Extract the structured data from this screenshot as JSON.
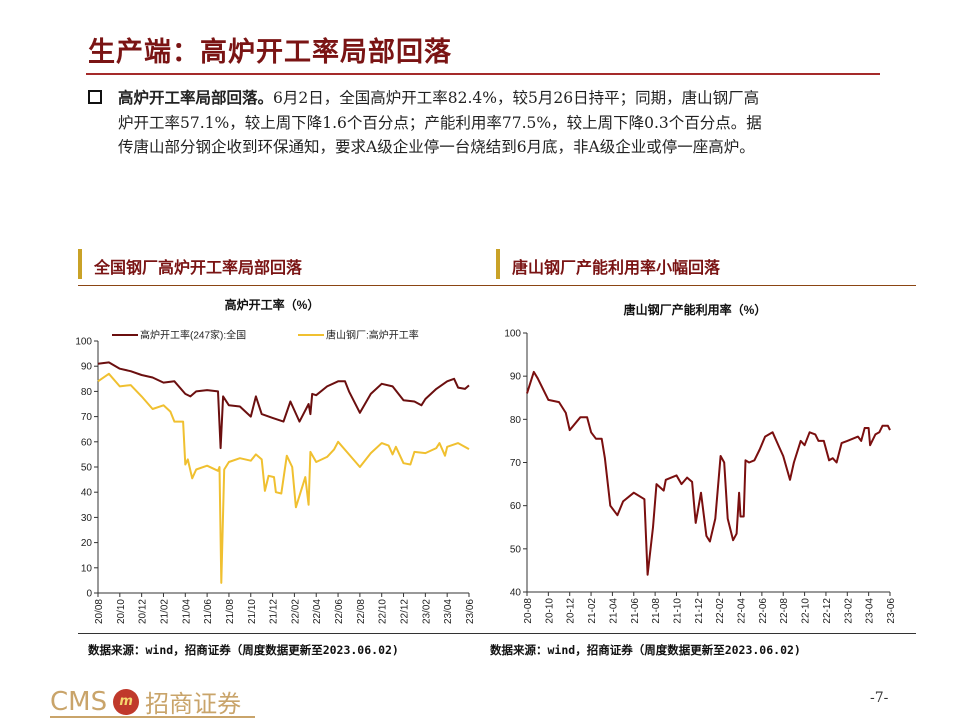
{
  "title": "生产端：高炉开工率局部回落",
  "summary": {
    "bold_lead": "高炉开工率局部回落。",
    "line1_rest": "6月2日，全国高炉开工率82.4%，较5月26日持平；同期，唐山钢厂高",
    "line2": "炉开工率57.1%，较上周下降1.6个百分点；产能利用率77.5%，较上周下降0.3个百分点。据",
    "line3": "传唐山部分钢企收到环保通知，要求A级企业停一台烧结到6月底，非A级企业或停一座高炉。"
  },
  "sections": {
    "left_title": "全国钢厂高炉开工率局部回落",
    "right_title": "唐山钢厂产能利用率小幅回落",
    "accent_color": "#c9a227"
  },
  "sources": {
    "left": "数据来源：wind，招商证券（周度数据更新至2023.06.02)",
    "right": "数据来源：wind，招商证券（周度数据更新至2023.06.02)"
  },
  "footer": {
    "logo_text": "CMS 招商证券",
    "page_number": "-7-"
  },
  "chart_data": [
    {
      "type": "line",
      "title": "高炉开工率（%）",
      "ylim": [
        0,
        100
      ],
      "yticks": [
        0,
        10,
        20,
        30,
        40,
        50,
        60,
        70,
        80,
        90,
        100
      ],
      "xlim": [
        "2020-08-01",
        "2023-06-01"
      ],
      "xtick_labels": [
        "20/08",
        "20/10",
        "20/12",
        "21/02",
        "21/04",
        "21/06",
        "21/08",
        "21/10",
        "21/12",
        "22/02",
        "22/04",
        "22/06",
        "22/08",
        "22/10",
        "22/12",
        "23/02",
        "23/04",
        "23/06"
      ],
      "grid": false,
      "legend": "top",
      "series": [
        {
          "name": "高炉开工率(247家):全国",
          "color": "#6b0f0f",
          "points": [
            [
              "2020-08-01",
              91
            ],
            [
              "2020-09-01",
              91.5
            ],
            [
              "2020-10-01",
              89
            ],
            [
              "2020-11-01",
              88
            ],
            [
              "2020-12-01",
              86.5
            ],
            [
              "2021-01-01",
              85.5
            ],
            [
              "2021-02-01",
              83.5
            ],
            [
              "2021-03-01",
              84
            ],
            [
              "2021-04-01",
              79
            ],
            [
              "2021-04-15",
              78
            ],
            [
              "2021-05-01",
              80
            ],
            [
              "2021-06-01",
              80.5
            ],
            [
              "2021-07-01",
              80
            ],
            [
              "2021-07-08",
              57.5
            ],
            [
              "2021-07-15",
              78
            ],
            [
              "2021-08-01",
              74.5
            ],
            [
              "2021-09-01",
              74
            ],
            [
              "2021-10-01",
              70
            ],
            [
              "2021-10-15",
              78
            ],
            [
              "2021-11-01",
              71
            ],
            [
              "2021-12-01",
              69.5
            ],
            [
              "2022-01-01",
              68
            ],
            [
              "2022-01-20",
              76
            ],
            [
              "2022-02-15",
              68
            ],
            [
              "2022-03-10",
              75
            ],
            [
              "2022-03-15",
              71
            ],
            [
              "2022-03-20",
              79
            ],
            [
              "2022-04-01",
              78.5
            ],
            [
              "2022-05-01",
              82
            ],
            [
              "2022-06-01",
              84
            ],
            [
              "2022-06-20",
              84
            ],
            [
              "2022-07-01",
              80
            ],
            [
              "2022-08-01",
              71.5
            ],
            [
              "2022-09-01",
              79
            ],
            [
              "2022-10-01",
              83
            ],
            [
              "2022-11-01",
              82
            ],
            [
              "2022-12-01",
              76.5
            ],
            [
              "2023-01-01",
              76
            ],
            [
              "2023-01-20",
              74.5
            ],
            [
              "2023-02-01",
              77
            ],
            [
              "2023-03-01",
              81
            ],
            [
              "2023-04-01",
              84
            ],
            [
              "2023-04-20",
              85
            ],
            [
              "2023-05-01",
              81.5
            ],
            [
              "2023-05-20",
              81
            ],
            [
              "2023-06-01",
              82.4
            ]
          ]
        },
        {
          "name": "唐山钢厂:高炉开工率",
          "color": "#f0c030",
          "points": [
            [
              "2020-08-01",
              84
            ],
            [
              "2020-09-01",
              87
            ],
            [
              "2020-10-01",
              82
            ],
            [
              "2020-11-01",
              82.5
            ],
            [
              "2020-12-01",
              78
            ],
            [
              "2021-01-01",
              73
            ],
            [
              "2021-02-01",
              74.5
            ],
            [
              "2021-02-20",
              72
            ],
            [
              "2021-03-01",
              68
            ],
            [
              "2021-03-25",
              68
            ],
            [
              "2021-04-01",
              51
            ],
            [
              "2021-04-08",
              53
            ],
            [
              "2021-04-20",
              45.5
            ],
            [
              "2021-05-01",
              49
            ],
            [
              "2021-06-01",
              50.5
            ],
            [
              "2021-07-01",
              48.5
            ],
            [
              "2021-07-05",
              50
            ],
            [
              "2021-07-10",
              4
            ],
            [
              "2021-07-18",
              49
            ],
            [
              "2021-08-01",
              52
            ],
            [
              "2021-09-01",
              53.5
            ],
            [
              "2021-10-01",
              52.5
            ],
            [
              "2021-10-15",
              55
            ],
            [
              "2021-11-01",
              53
            ],
            [
              "2021-11-10",
              40.5
            ],
            [
              "2021-11-20",
              46.5
            ],
            [
              "2021-12-05",
              46
            ],
            [
              "2021-12-10",
              40
            ],
            [
              "2021-12-25",
              39.5
            ],
            [
              "2022-01-10",
              54.5
            ],
            [
              "2022-01-25",
              50
            ],
            [
              "2022-02-05",
              34
            ],
            [
              "2022-03-01",
              46
            ],
            [
              "2022-03-10",
              35
            ],
            [
              "2022-03-15",
              56
            ],
            [
              "2022-04-01",
              52
            ],
            [
              "2022-05-01",
              54
            ],
            [
              "2022-05-20",
              57
            ],
            [
              "2022-06-01",
              60
            ],
            [
              "2022-07-01",
              55
            ],
            [
              "2022-08-01",
              50
            ],
            [
              "2022-09-01",
              55.5
            ],
            [
              "2022-10-01",
              59.5
            ],
            [
              "2022-10-20",
              58.5
            ],
            [
              "2022-11-01",
              55
            ],
            [
              "2022-11-10",
              58
            ],
            [
              "2022-12-01",
              51.5
            ],
            [
              "2022-12-20",
              51
            ],
            [
              "2023-01-01",
              56
            ],
            [
              "2023-02-01",
              55.5
            ],
            [
              "2023-03-01",
              57.5
            ],
            [
              "2023-03-10",
              59.5
            ],
            [
              "2023-03-25",
              54.5
            ],
            [
              "2023-04-01",
              58
            ],
            [
              "2023-05-01",
              59.5
            ],
            [
              "2023-06-01",
              57.1
            ]
          ]
        }
      ]
    },
    {
      "type": "line",
      "title": "唐山钢厂产能利用率（%）",
      "ylim": [
        40,
        100
      ],
      "yticks": [
        40,
        50,
        60,
        70,
        80,
        90,
        100
      ],
      "xlim": [
        "2020-08-01",
        "2023-06-01"
      ],
      "xtick_labels": [
        "20-08",
        "20-10",
        "20-12",
        "21-02",
        "21-04",
        "21-06",
        "21-08",
        "21-10",
        "21-12",
        "22-02",
        "22-04",
        "22-06",
        "22-08",
        "22-10",
        "22-12",
        "23-02",
        "23-04",
        "23-06"
      ],
      "grid": false,
      "series": [
        {
          "color": "#7a0f0f",
          "points": [
            [
              "2020-08-01",
              86
            ],
            [
              "2020-08-20",
              91
            ],
            [
              "2020-09-01",
              89.5
            ],
            [
              "2020-10-01",
              84.5
            ],
            [
              "2020-11-01",
              84
            ],
            [
              "2020-11-20",
              81.5
            ],
            [
              "2020-12-01",
              77.5
            ],
            [
              "2021-01-01",
              80.5
            ],
            [
              "2021-01-20",
              80.5
            ],
            [
              "2021-02-01",
              77
            ],
            [
              "2021-02-15",
              75.5
            ],
            [
              "2021-03-01",
              75.5
            ],
            [
              "2021-03-10",
              71
            ],
            [
              "2021-03-25",
              60
            ],
            [
              "2021-04-15",
              57.8
            ],
            [
              "2021-05-01",
              61
            ],
            [
              "2021-06-01",
              63
            ],
            [
              "2021-07-01",
              61.5
            ],
            [
              "2021-07-10",
              44
            ],
            [
              "2021-07-25",
              55
            ],
            [
              "2021-08-05",
              65
            ],
            [
              "2021-08-25",
              63.5
            ],
            [
              "2021-09-01",
              66
            ],
            [
              "2021-10-01",
              67
            ],
            [
              "2021-10-15",
              65
            ],
            [
              "2021-11-01",
              66.5
            ],
            [
              "2021-11-15",
              65.5
            ],
            [
              "2021-11-25",
              56
            ],
            [
              "2021-12-10",
              63
            ],
            [
              "2021-12-25",
              53
            ],
            [
              "2022-01-05",
              51.7
            ],
            [
              "2022-01-20",
              57
            ],
            [
              "2022-02-05",
              71.5
            ],
            [
              "2022-02-15",
              70
            ],
            [
              "2022-02-25",
              57
            ],
            [
              "2022-03-10",
              52
            ],
            [
              "2022-03-20",
              53.5
            ],
            [
              "2022-03-27",
              63
            ],
            [
              "2022-04-01",
              57.5
            ],
            [
              "2022-04-10",
              57.5
            ],
            [
              "2022-04-15",
              70.5
            ],
            [
              "2022-04-25",
              70
            ],
            [
              "2022-05-10",
              70.5
            ],
            [
              "2022-05-25",
              73
            ],
            [
              "2022-06-10",
              76
            ],
            [
              "2022-07-01",
              77
            ],
            [
              "2022-07-20",
              73.5
            ],
            [
              "2022-08-01",
              71.5
            ],
            [
              "2022-08-20",
              66
            ],
            [
              "2022-09-01",
              70
            ],
            [
              "2022-09-20",
              75
            ],
            [
              "2022-10-01",
              74
            ],
            [
              "2022-10-15",
              77
            ],
            [
              "2022-11-01",
              76.5
            ],
            [
              "2022-11-10",
              75
            ],
            [
              "2022-11-25",
              75
            ],
            [
              "2022-12-10",
              70.5
            ],
            [
              "2022-12-20",
              71
            ],
            [
              "2023-01-01",
              70
            ],
            [
              "2023-01-15",
              74.5
            ],
            [
              "2023-02-01",
              75
            ],
            [
              "2023-03-01",
              76
            ],
            [
              "2023-03-10",
              75
            ],
            [
              "2023-03-20",
              78
            ],
            [
              "2023-04-01",
              78
            ],
            [
              "2023-04-05",
              74
            ],
            [
              "2023-04-20",
              76.5
            ],
            [
              "2023-05-01",
              77
            ],
            [
              "2023-05-10",
              78.5
            ],
            [
              "2023-05-25",
              78.5
            ],
            [
              "2023-06-01",
              77.5
            ]
          ]
        }
      ]
    }
  ]
}
